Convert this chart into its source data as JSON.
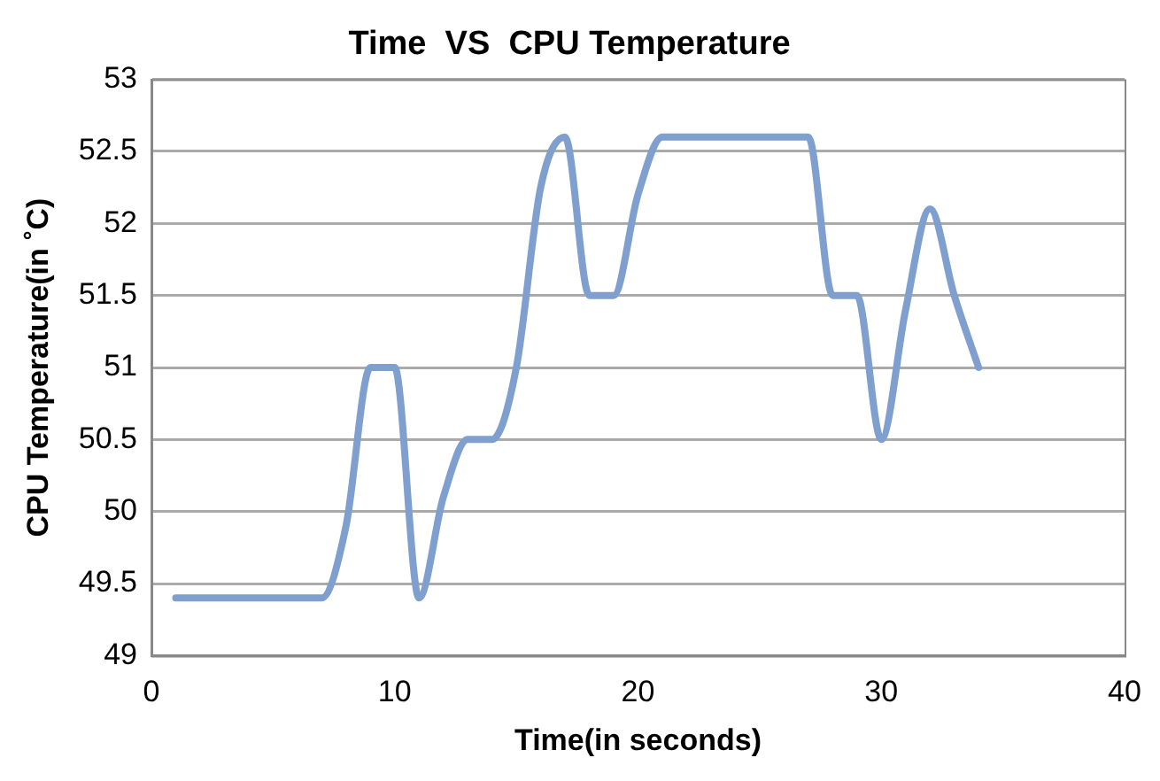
{
  "chart_data": {
    "type": "line",
    "title": "Time  VS  CPU Temperature",
    "xlabel": "Time(in seconds)",
    "ylabel": "CPU Temperature(in ˚C)",
    "x": [
      1,
      2,
      3,
      4,
      5,
      6,
      7,
      8,
      9,
      10,
      11,
      12,
      13,
      14,
      15,
      16,
      17,
      18,
      19,
      20,
      21,
      22,
      23,
      24,
      25,
      26,
      27,
      28,
      29,
      30,
      31,
      32,
      33,
      34
    ],
    "series": [
      {
        "color": "#7f9fcf",
        "values": [
          49.4,
          49.4,
          49.4,
          49.4,
          49.4,
          49.4,
          49.4,
          49.9,
          51,
          51,
          49.4,
          50.1,
          50.5,
          50.5,
          51,
          52.25,
          52.6,
          51.5,
          51.5,
          52.2,
          52.6,
          52.6,
          52.6,
          52.6,
          52.6,
          52.6,
          52.6,
          51.5,
          51.5,
          50.5,
          51.4,
          52.1,
          51.5,
          51
        ]
      }
    ],
    "xlim": [
      0,
      40
    ],
    "xticks": [
      0,
      10,
      20,
      30,
      40
    ],
    "ylim": [
      49,
      53
    ],
    "yticks": [
      49,
      49.5,
      50,
      50.5,
      51,
      51.5,
      52,
      52.5,
      53
    ],
    "grid": "y",
    "legend": false,
    "marker": "none",
    "line_style": "solid"
  }
}
